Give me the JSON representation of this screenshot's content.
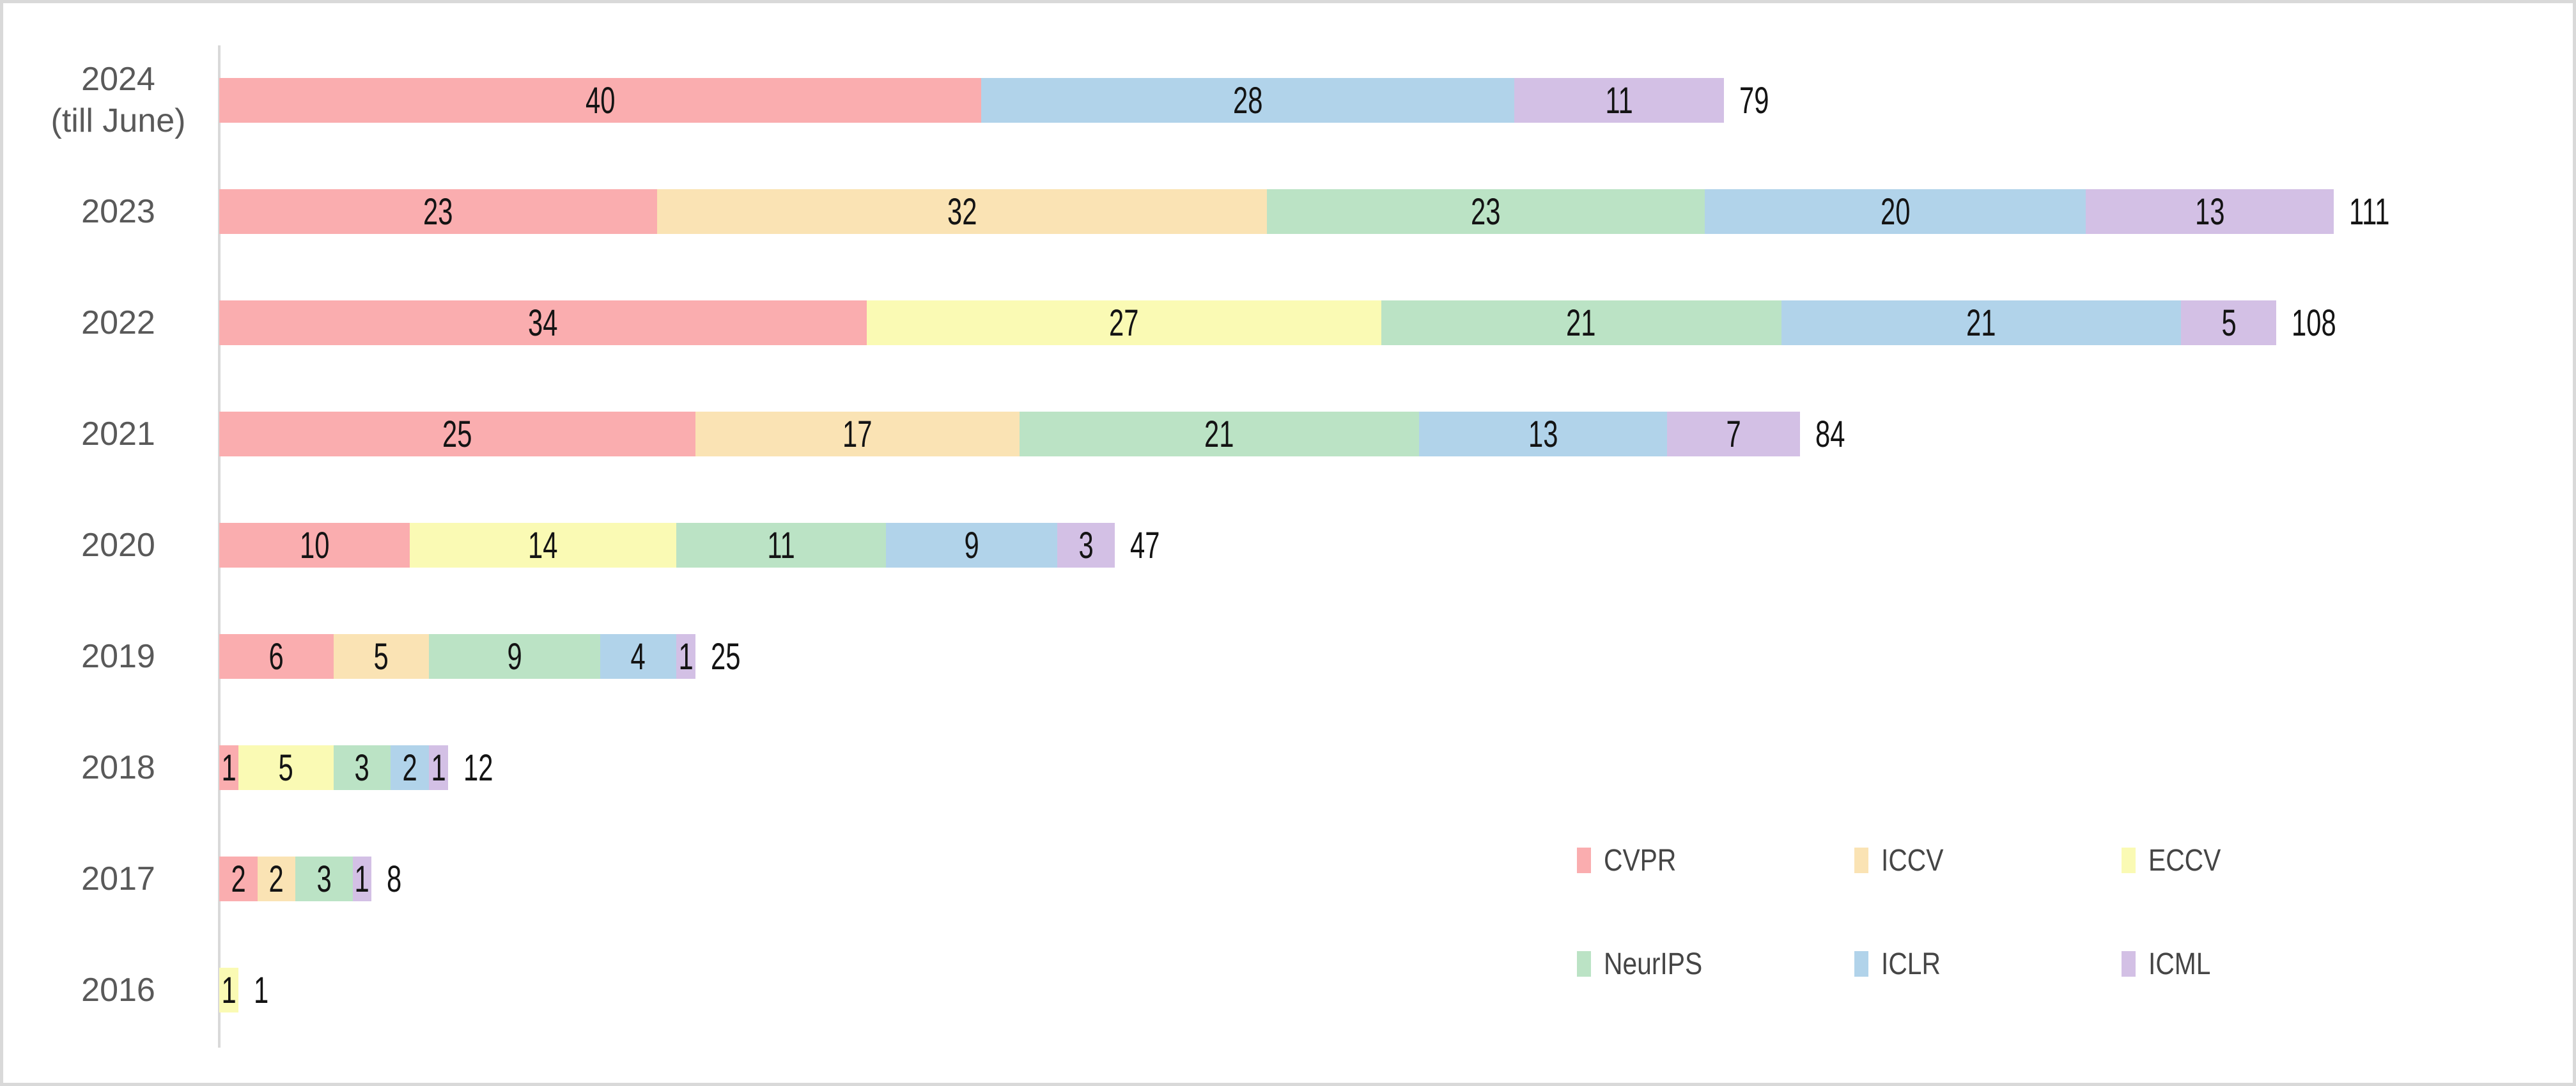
{
  "chart_data": {
    "type": "bar",
    "subtype": "horizontal-stacked",
    "title": "",
    "xlabel": "",
    "ylabel": "",
    "grid": false,
    "value_axis_visible": false,
    "category_axis_line_color": "#d9d9d9",
    "value_label_color": "#141414",
    "category_label_color": "#595959",
    "series_names": [
      "CVPR",
      "ICCV",
      "ECCV",
      "NeurIPS",
      "ICLR",
      "ICML"
    ],
    "colors": {
      "CVPR": "#faadaf",
      "ICCV": "#fae3b4",
      "ECCV": "#fafab4",
      "NeurIPS": "#bbe3c5",
      "ICLR": "#b1d3ea",
      "ICML": "#d3c0e5"
    },
    "rows": [
      {
        "year": "2024 (till June)",
        "label_lines": [
          "2024",
          "(till June)"
        ],
        "segments": [
          {
            "series": "CVPR",
            "value": 40
          },
          {
            "series": "ICLR",
            "value": 28
          },
          {
            "series": "ICML",
            "value": 11
          }
        ],
        "total": 79
      },
      {
        "year": "2023",
        "label_lines": [
          "2023"
        ],
        "segments": [
          {
            "series": "CVPR",
            "value": 23
          },
          {
            "series": "ICCV",
            "value": 32
          },
          {
            "series": "NeurIPS",
            "value": 23
          },
          {
            "series": "ICLR",
            "value": 20
          },
          {
            "series": "ICML",
            "value": 13
          }
        ],
        "total": 111
      },
      {
        "year": "2022",
        "label_lines": [
          "2022"
        ],
        "segments": [
          {
            "series": "CVPR",
            "value": 34
          },
          {
            "series": "ECCV",
            "value": 27
          },
          {
            "series": "NeurIPS",
            "value": 21
          },
          {
            "series": "ICLR",
            "value": 21
          },
          {
            "series": "ICML",
            "value": 5
          }
        ],
        "total": 108
      },
      {
        "year": "2021",
        "label_lines": [
          "2021"
        ],
        "segments": [
          {
            "series": "CVPR",
            "value": 25
          },
          {
            "series": "ICCV",
            "value": 17
          },
          {
            "series": "NeurIPS",
            "value": 21
          },
          {
            "series": "ICLR",
            "value": 13
          },
          {
            "series": "ICML",
            "value": 7
          }
        ],
        "total": 84
      },
      {
        "year": "2020",
        "label_lines": [
          "2020"
        ],
        "segments": [
          {
            "series": "CVPR",
            "value": 10
          },
          {
            "series": "ECCV",
            "value": 14
          },
          {
            "series": "NeurIPS",
            "value": 11
          },
          {
            "series": "ICLR",
            "value": 9
          },
          {
            "series": "ICML",
            "value": 3
          }
        ],
        "total": 47
      },
      {
        "year": "2019",
        "label_lines": [
          "2019"
        ],
        "segments": [
          {
            "series": "CVPR",
            "value": 6
          },
          {
            "series": "ICCV",
            "value": 5
          },
          {
            "series": "NeurIPS",
            "value": 9
          },
          {
            "series": "ICLR",
            "value": 4
          },
          {
            "series": "ICML",
            "value": 1
          }
        ],
        "total": 25
      },
      {
        "year": "2018",
        "label_lines": [
          "2018"
        ],
        "segments": [
          {
            "series": "CVPR",
            "value": 1
          },
          {
            "series": "ECCV",
            "value": 5
          },
          {
            "series": "NeurIPS",
            "value": 3
          },
          {
            "series": "ICLR",
            "value": 2
          },
          {
            "series": "ICML",
            "value": 1
          }
        ],
        "total": 12
      },
      {
        "year": "2017",
        "label_lines": [
          "2017"
        ],
        "segments": [
          {
            "series": "CVPR",
            "value": 2
          },
          {
            "series": "ICCV",
            "value": 2
          },
          {
            "series": "NeurIPS",
            "value": 3
          },
          {
            "series": "ICML",
            "value": 1
          }
        ],
        "total": 8
      },
      {
        "year": "2016",
        "label_lines": [
          "2016"
        ],
        "segments": [
          {
            "series": "ECCV",
            "value": 1
          }
        ],
        "total": 1
      }
    ],
    "legend": {
      "position": "inside-bottom-right",
      "items": [
        "CVPR",
        "ICCV",
        "ECCV",
        "NeurIPS",
        "ICLR",
        "ICML"
      ]
    }
  }
}
